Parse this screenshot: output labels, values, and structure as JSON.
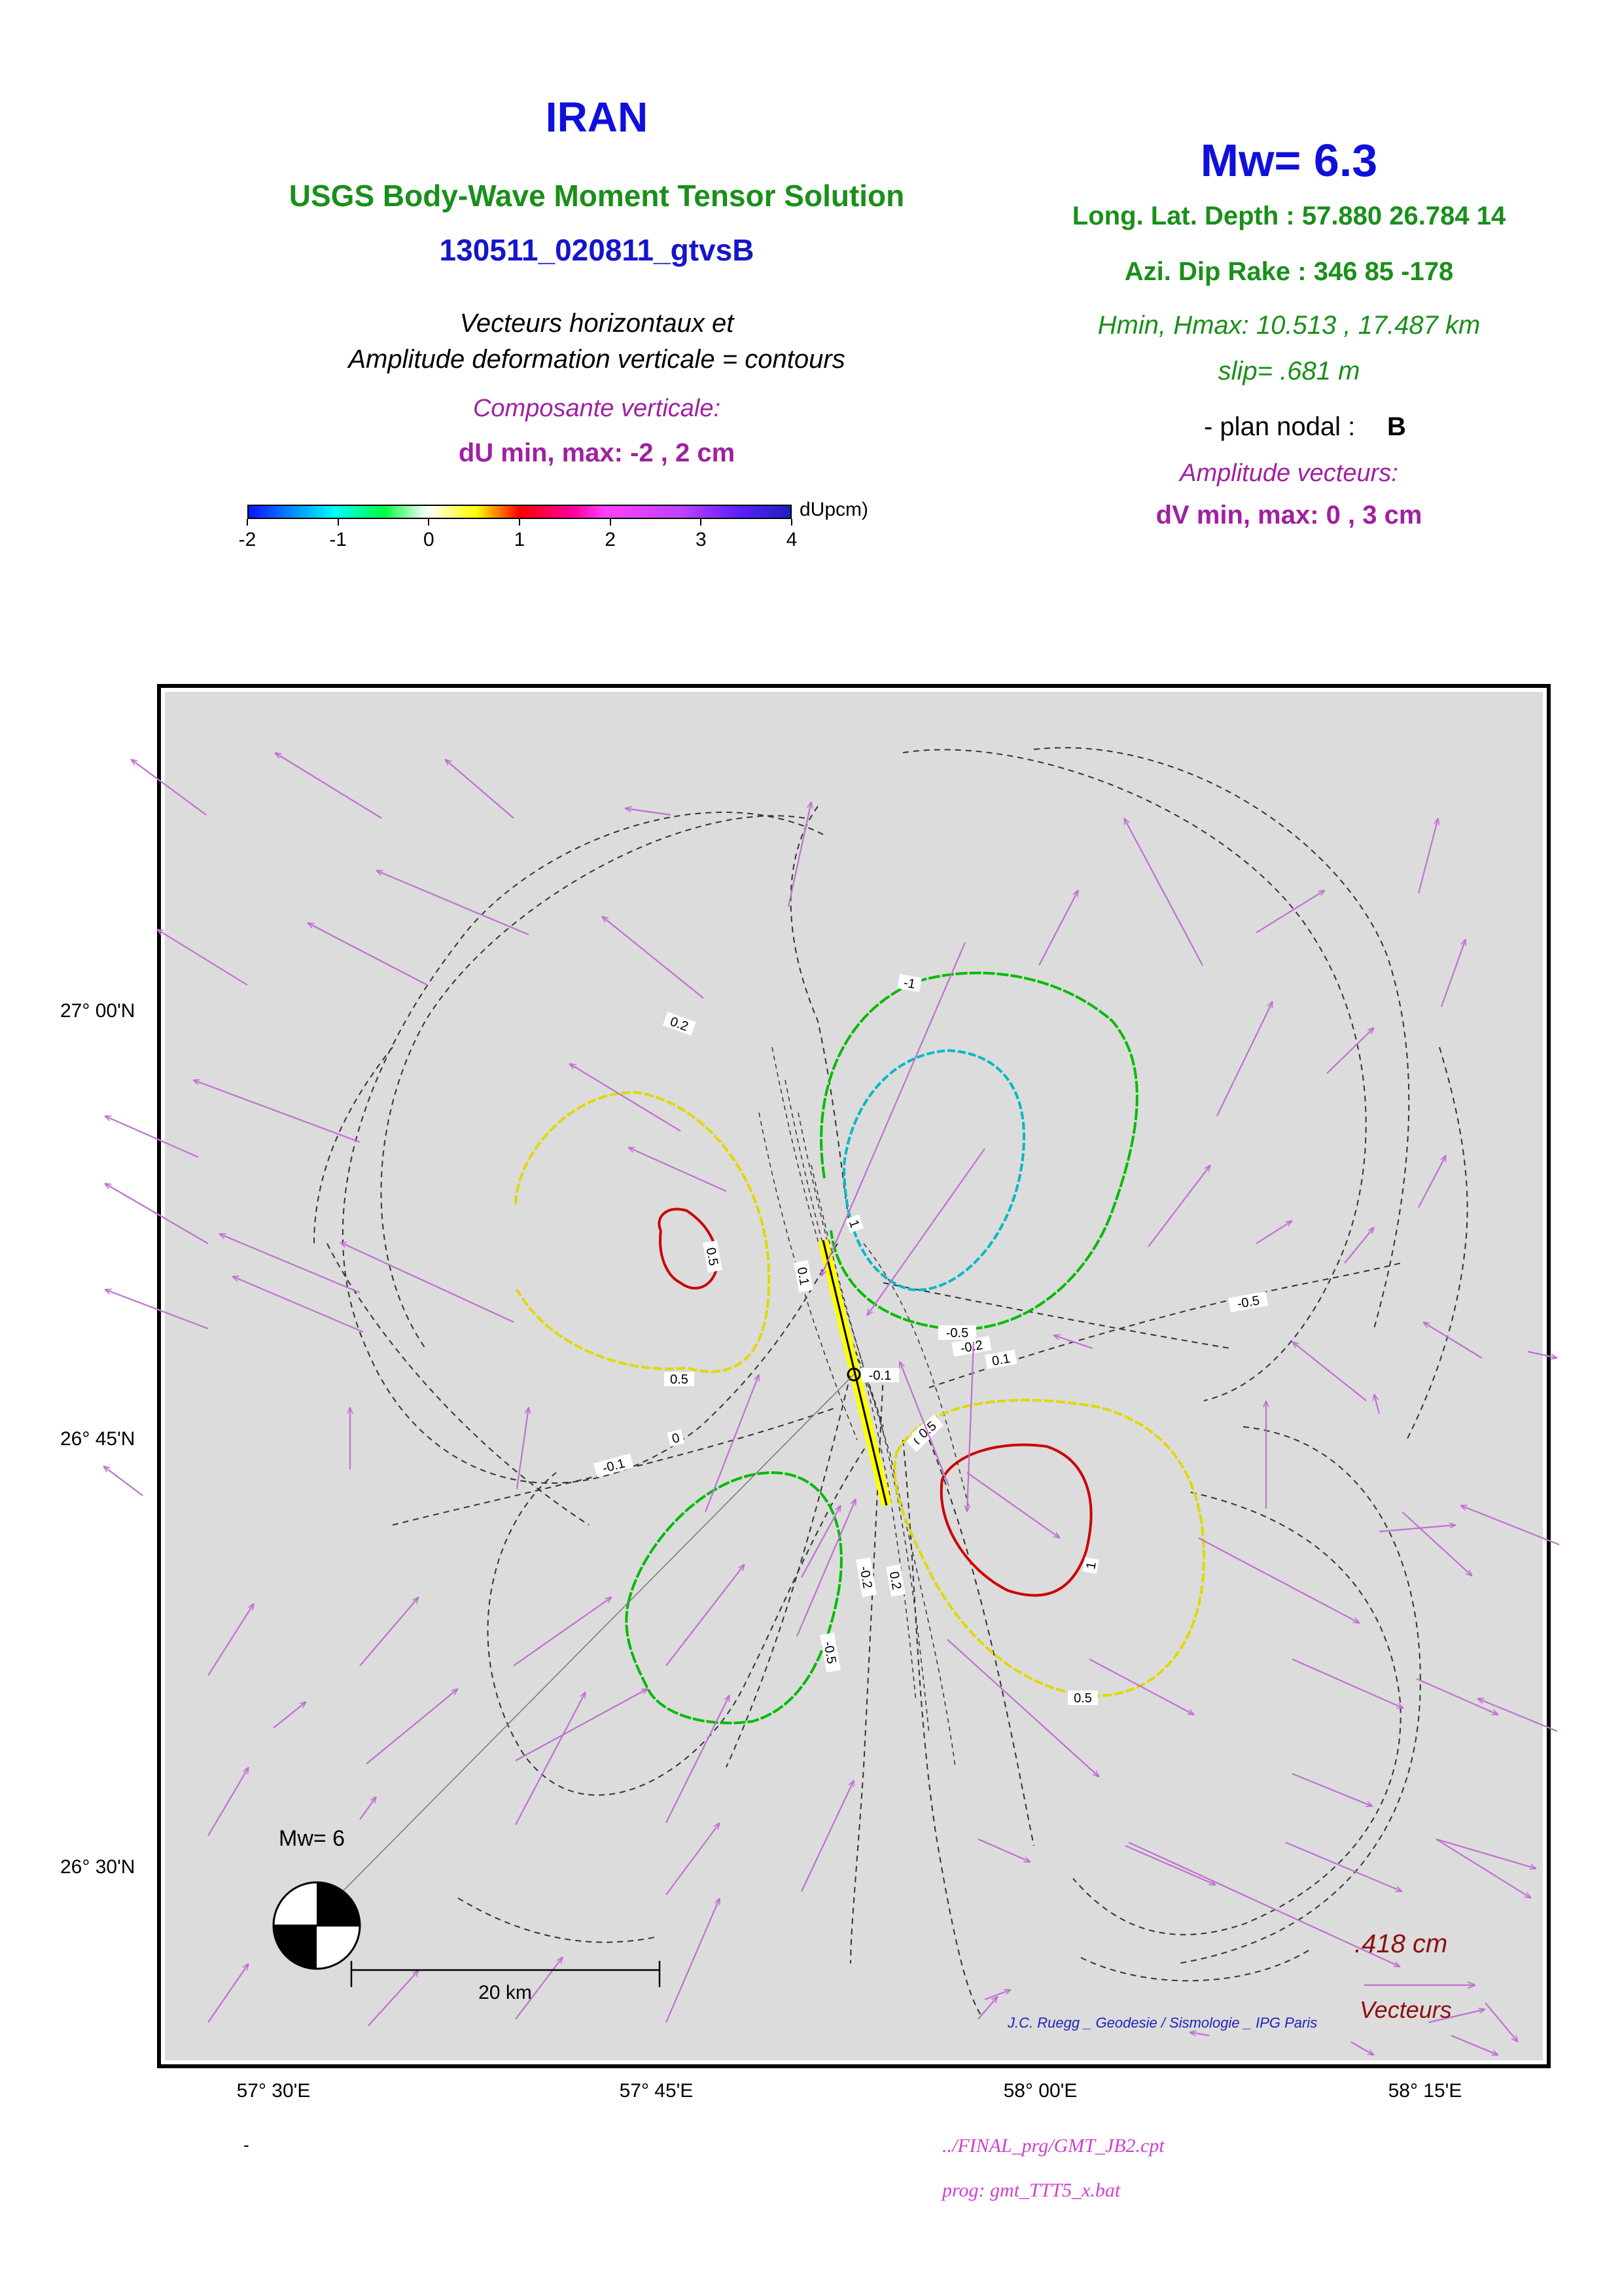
{
  "header": {
    "region": "IRAN",
    "solution": "USGS Body-Wave Moment Tensor Solution",
    "event_id": "130511_020811_gtvsB",
    "desc_line1": "Vecteurs horizontaux et",
    "desc_line2": "Amplitude deformation verticale = contours",
    "vertical_label": "Composante verticale:",
    "du_range": "dU min, max:  -2 , 2 cm"
  },
  "params": {
    "mw": "Mw= 6.3",
    "location": "Long. Lat. Depth : 57.880 26.784 14",
    "mechanism": "Azi.  Dip   Rake :  346 85 -178",
    "hrange": "Hmin, Hmax:  10.513 , 17.487 km",
    "slip": "slip= .681 m",
    "nodal_label": "- plan nodal :",
    "nodal_value": "B",
    "vector_label": "Amplitude vecteurs:",
    "dv_range": "dV min, max:  0 , 3 cm"
  },
  "colorbar": {
    "unit": "dUpcm)",
    "ticks": [
      "-2",
      "-1",
      "0",
      "1",
      "2",
      "3",
      "4"
    ]
  },
  "map": {
    "lat_labels": [
      "27° 00'N",
      "26° 45'N",
      "26° 30'N"
    ],
    "lon_labels": [
      "57° 30'E",
      "57° 45'E",
      "58° 00'E",
      "58° 15'E"
    ],
    "contour_labels": [
      "0.5",
      "0.2",
      "0.1",
      "0.5",
      "1",
      "-1",
      "-0.5",
      "0",
      "0.5",
      "0",
      "-0.1",
      "-0.5",
      "-0.2",
      "0.1",
      "-0.1",
      "0.5",
      "1",
      "0.5",
      "-0.5",
      "-0.2",
      "0.2"
    ],
    "beachball_label": "Mw= 6",
    "scale_label": "20 km",
    "vector_scale_value": ".418  cm",
    "vector_scale_label": "Vecteurs",
    "credit": "J.C. Ruegg _ Geodesie / Sismologie _ IPG Paris",
    "colors": {
      "background": "#dcdcdc",
      "vectors": "#c070d0",
      "contour_1": "#cc0000",
      "contour_05": "#e0d800",
      "contour_m05": "#00bb00",
      "contour_m1": "#00b8c8",
      "fault": "#ffff00"
    }
  },
  "footer": {
    "dash": "-",
    "cpt": "../FINAL_prg/GMT_JB2.cpt",
    "prog": "prog: gmt_TTT5_x.bat"
  }
}
